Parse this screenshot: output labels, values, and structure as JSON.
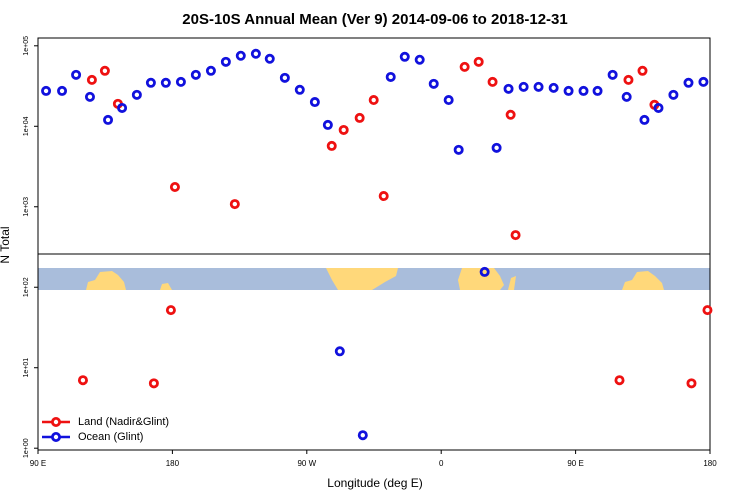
{
  "chart_data": {
    "type": "scatter",
    "title": "20S-10S Annual Mean (Ver 9)   2014-09-06 to 2018-12-31",
    "x_label": "Longitude (deg E)",
    "y_label": "N Total",
    "log_y": true,
    "legend": "bottom-left",
    "xlim": [
      90,
      540
    ],
    "xticks": [
      {
        "value": 90,
        "label": "90 E"
      },
      {
        "value": 180,
        "label": "180"
      },
      {
        "value": 270,
        "label": "90 W"
      },
      {
        "value": 360,
        "label": "0"
      },
      {
        "value": 450,
        "label": "90 E"
      },
      {
        "value": 540,
        "label": "180"
      }
    ],
    "ylim": [
      0.95,
      125000
    ],
    "yticks": [
      {
        "value": 1,
        "label": "1e+00"
      },
      {
        "value": 10,
        "label": "1e+01"
      },
      {
        "value": 100,
        "label": "1e+02"
      },
      {
        "value": 1000,
        "label": "1e+03"
      },
      {
        "value": 10000,
        "label": "1e+04"
      },
      {
        "value": 100000,
        "label": "1e+05"
      }
    ],
    "series": [
      {
        "name": "Land (Nadir&Glint)",
        "color": "#ee1111",
        "x": [
          120.1,
          126.1,
          134.8,
          143.5,
          167.6,
          179.0,
          181.7,
          221.8,
          286.7,
          294.7,
          305.4,
          314.8,
          321.5,
          375.7,
          385.1,
          394.4,
          406.5,
          409.8,
          479.4,
          485.4,
          494.8,
          502.8,
          527.6,
          538.3
        ],
        "values": [
          7.0,
          37700,
          48900,
          19000,
          6.4,
          52,
          1760,
          1080,
          5700,
          9000,
          12700,
          21200,
          1360,
          54700,
          63200,
          35600,
          13900,
          445,
          7.0,
          37700,
          48900,
          18500,
          6.4,
          52
        ]
      },
      {
        "name": "Ocean (Glint)",
        "color": "#1111dd",
        "x": [
          95.4,
          106.1,
          115.5,
          124.8,
          136.9,
          146.3,
          156.2,
          165.6,
          175.6,
          185.7,
          195.7,
          205.8,
          215.8,
          225.8,
          235.9,
          245.2,
          255.3,
          265.3,
          275.4,
          284.1,
          292.1,
          307.5,
          326.2,
          335.6,
          345.6,
          355.0,
          365.0,
          371.7,
          389.1,
          397.1,
          405.1,
          415.2,
          425.2,
          435.3,
          445.3,
          455.3,
          464.7,
          474.8,
          484.2,
          496.1,
          505.5,
          515.5,
          525.6,
          535.6
        ],
        "values": [
          27500,
          27500,
          43600,
          23200,
          12000,
          16900,
          24600,
          34700,
          34700,
          35600,
          43600,
          48900,
          63200,
          75200,
          79600,
          69000,
          40000,
          28400,
          20000,
          10400,
          16,
          1.45,
          41000,
          73000,
          67100,
          33700,
          21200,
          5100,
          155,
          5400,
          29200,
          30900,
          30900,
          30000,
          27500,
          27500,
          27500,
          43600,
          23200,
          12000,
          16900,
          24600,
          34700,
          35600
        ]
      }
    ]
  }
}
